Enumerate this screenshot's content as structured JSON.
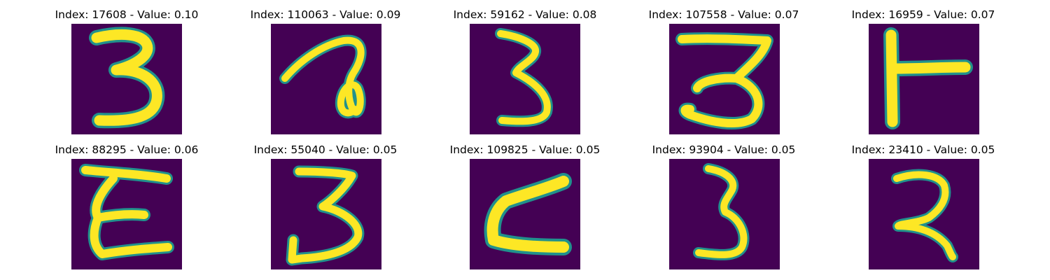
{
  "colors": {
    "background": "#440154",
    "edge": "#21918c",
    "mid": "#5ec962",
    "stroke": "#fde725"
  },
  "panels": [
    {
      "title": "Index: 17608 - Value: 0.10",
      "digit": "3"
    },
    {
      "title": "Index: 110063 - Value: 0.09",
      "digit": "ə"
    },
    {
      "title": "Index: 59162 - Value: 0.08",
      "digit": "3"
    },
    {
      "title": "Index: 107558 - Value: 0.07",
      "digit": "3"
    },
    {
      "title": "Index: 16959 - Value: 0.07",
      "digit": "T"
    },
    {
      "title": "Index: 88295 - Value: 0.06",
      "digit": "E"
    },
    {
      "title": "Index: 55040 - Value: 0.05",
      "digit": "3"
    },
    {
      "title": "Index: 109825 - Value: 0.05",
      "digit": "Z"
    },
    {
      "title": "Index: 93904 - Value: 0.05",
      "digit": "3"
    },
    {
      "title": "Index: 23410 - Value: 0.05",
      "digit": "2"
    }
  ]
}
